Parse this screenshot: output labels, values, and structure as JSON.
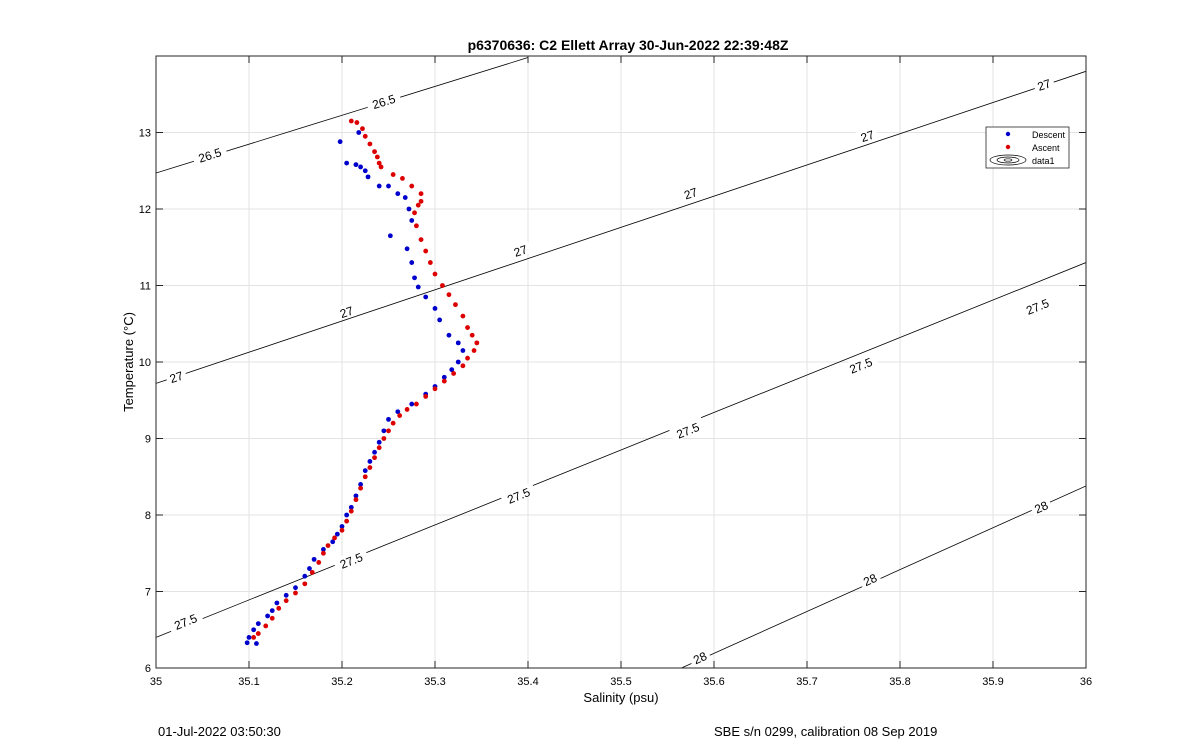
{
  "chart_data": {
    "type": "scatter",
    "title": "p6370636: C2 Ellett Array 30-Jun-2022 22:39:48Z",
    "xlabel": "Salinity (psu)",
    "ylabel": "Temperature (°C)",
    "xlim": [
      35,
      36
    ],
    "ylim": [
      6,
      14
    ],
    "x_ticks": [
      35,
      35.1,
      35.2,
      35.3,
      35.4,
      35.5,
      35.6,
      35.7,
      35.8,
      35.9,
      36
    ],
    "x_tick_labels": [
      "35",
      "35.1",
      "35.2",
      "35.3",
      "35.4",
      "35.5",
      "35.6",
      "35.7",
      "35.8",
      "35.9",
      "36"
    ],
    "y_ticks": [
      6,
      7,
      8,
      9,
      10,
      11,
      12,
      13
    ],
    "y_tick_labels": [
      "6",
      "7",
      "8",
      "9",
      "10",
      "11",
      "12",
      "13"
    ],
    "grid": true,
    "legend_position": "top-right",
    "legend": [
      "Descent",
      "Ascent",
      "data1"
    ],
    "colors": {
      "descent": "#0000cc",
      "ascent": "#dd0000",
      "contour": "#000000",
      "grid": "#e3e3e3"
    },
    "series": [
      {
        "name": "Descent",
        "color": "#0000cc",
        "points": [
          [
            35.198,
            12.88
          ],
          [
            35.205,
            12.6
          ],
          [
            35.215,
            12.58
          ],
          [
            35.22,
            12.55
          ],
          [
            35.225,
            12.5
          ],
          [
            35.228,
            12.42
          ],
          [
            35.218,
            13.0
          ],
          [
            35.24,
            12.3
          ],
          [
            35.25,
            12.3
          ],
          [
            35.26,
            12.2
          ],
          [
            35.268,
            12.15
          ],
          [
            35.272,
            12.0
          ],
          [
            35.275,
            11.85
          ],
          [
            35.252,
            11.65
          ],
          [
            35.27,
            11.48
          ],
          [
            35.275,
            11.3
          ],
          [
            35.278,
            11.1
          ],
          [
            35.282,
            10.98
          ],
          [
            35.29,
            10.85
          ],
          [
            35.3,
            10.7
          ],
          [
            35.305,
            10.55
          ],
          [
            35.315,
            10.35
          ],
          [
            35.325,
            10.25
          ],
          [
            35.33,
            10.15
          ],
          [
            35.325,
            10.0
          ],
          [
            35.318,
            9.9
          ],
          [
            35.31,
            9.8
          ],
          [
            35.3,
            9.68
          ],
          [
            35.29,
            9.58
          ],
          [
            35.275,
            9.45
          ],
          [
            35.26,
            9.35
          ],
          [
            35.25,
            9.25
          ],
          [
            35.245,
            9.1
          ],
          [
            35.24,
            8.95
          ],
          [
            35.235,
            8.82
          ],
          [
            35.23,
            8.7
          ],
          [
            35.225,
            8.58
          ],
          [
            35.22,
            8.4
          ],
          [
            35.215,
            8.25
          ],
          [
            35.21,
            8.1
          ],
          [
            35.205,
            8.0
          ],
          [
            35.2,
            7.85
          ],
          [
            35.195,
            7.75
          ],
          [
            35.19,
            7.65
          ],
          [
            35.18,
            7.55
          ],
          [
            35.17,
            7.42
          ],
          [
            35.165,
            7.3
          ],
          [
            35.16,
            7.2
          ],
          [
            35.15,
            7.05
          ],
          [
            35.14,
            6.95
          ],
          [
            35.13,
            6.85
          ],
          [
            35.125,
            6.75
          ],
          [
            35.12,
            6.68
          ],
          [
            35.11,
            6.58
          ],
          [
            35.105,
            6.5
          ],
          [
            35.1,
            6.4
          ],
          [
            35.098,
            6.33
          ],
          [
            35.108,
            6.32
          ]
        ]
      },
      {
        "name": "Ascent",
        "color": "#dd0000",
        "points": [
          [
            35.21,
            13.15
          ],
          [
            35.216,
            13.13
          ],
          [
            35.222,
            13.05
          ],
          [
            35.225,
            12.95
          ],
          [
            35.23,
            12.85
          ],
          [
            35.235,
            12.75
          ],
          [
            35.238,
            12.68
          ],
          [
            35.24,
            12.6
          ],
          [
            35.242,
            12.55
          ],
          [
            35.255,
            12.45
          ],
          [
            35.265,
            12.4
          ],
          [
            35.275,
            12.3
          ],
          [
            35.285,
            12.2
          ],
          [
            35.285,
            12.1
          ],
          [
            35.282,
            12.05
          ],
          [
            35.278,
            11.95
          ],
          [
            35.28,
            11.78
          ],
          [
            35.285,
            11.6
          ],
          [
            35.29,
            11.45
          ],
          [
            35.295,
            11.3
          ],
          [
            35.3,
            11.15
          ],
          [
            35.308,
            11.0
          ],
          [
            35.315,
            10.88
          ],
          [
            35.322,
            10.75
          ],
          [
            35.33,
            10.6
          ],
          [
            35.335,
            10.45
          ],
          [
            35.34,
            10.35
          ],
          [
            35.345,
            10.25
          ],
          [
            35.342,
            10.15
          ],
          [
            35.335,
            10.05
          ],
          [
            35.33,
            9.95
          ],
          [
            35.32,
            9.85
          ],
          [
            35.31,
            9.75
          ],
          [
            35.3,
            9.65
          ],
          [
            35.29,
            9.55
          ],
          [
            35.28,
            9.45
          ],
          [
            35.27,
            9.38
          ],
          [
            35.262,
            9.3
          ],
          [
            35.255,
            9.2
          ],
          [
            35.25,
            9.1
          ],
          [
            35.245,
            9.0
          ],
          [
            35.24,
            8.88
          ],
          [
            35.235,
            8.75
          ],
          [
            35.23,
            8.62
          ],
          [
            35.225,
            8.5
          ],
          [
            35.22,
            8.35
          ],
          [
            35.215,
            8.2
          ],
          [
            35.21,
            8.05
          ],
          [
            35.205,
            7.92
          ],
          [
            35.2,
            7.8
          ],
          [
            35.192,
            7.7
          ],
          [
            35.185,
            7.6
          ],
          [
            35.18,
            7.5
          ],
          [
            35.175,
            7.38
          ],
          [
            35.168,
            7.25
          ],
          [
            35.16,
            7.1
          ],
          [
            35.15,
            6.98
          ],
          [
            35.14,
            6.88
          ],
          [
            35.132,
            6.78
          ],
          [
            35.125,
            6.65
          ],
          [
            35.118,
            6.55
          ],
          [
            35.11,
            6.45
          ],
          [
            35.105,
            6.4
          ]
        ]
      }
    ],
    "contours": [
      {
        "label": "26.5",
        "segments": [
          [
            [
              35.0,
              12.47
            ],
            [
              35.4,
              13.98
            ]
          ]
        ],
        "labels": [
          [
            35.058,
            12.7
          ],
          [
            35.245,
            13.4
          ]
        ]
      },
      {
        "label": "27",
        "segments": [
          [
            [
              35.0,
              9.72
            ],
            [
              36.0,
              13.8
            ]
          ]
        ],
        "labels": [
          [
            35.022,
            9.8
          ],
          [
            35.205,
            10.65
          ],
          [
            35.392,
            11.45
          ],
          [
            35.575,
            12.2
          ],
          [
            35.765,
            12.95
          ],
          [
            35.955,
            13.62
          ]
        ]
      },
      {
        "label": "27.5",
        "segments": [
          [
            [
              35.0,
              6.4
            ],
            [
              36.0,
              11.3
            ]
          ]
        ],
        "labels": [
          [
            35.032,
            6.6
          ],
          [
            35.21,
            7.4
          ],
          [
            35.39,
            8.25
          ],
          [
            35.572,
            9.1
          ],
          [
            35.758,
            9.95
          ],
          [
            35.948,
            10.72
          ]
        ]
      },
      {
        "label": "28",
        "segments": [
          [
            [
              35.565,
              6.0
            ],
            [
              36.0,
              8.38
            ]
          ]
        ],
        "labels": [
          [
            35.585,
            6.13
          ],
          [
            35.768,
            7.15
          ],
          [
            35.952,
            8.1
          ]
        ]
      }
    ]
  },
  "footer": {
    "timestamp": "01-Jul-2022 03:50:30",
    "calibration": "SBE s/n 0299, calibration 08 Sep 2019"
  }
}
